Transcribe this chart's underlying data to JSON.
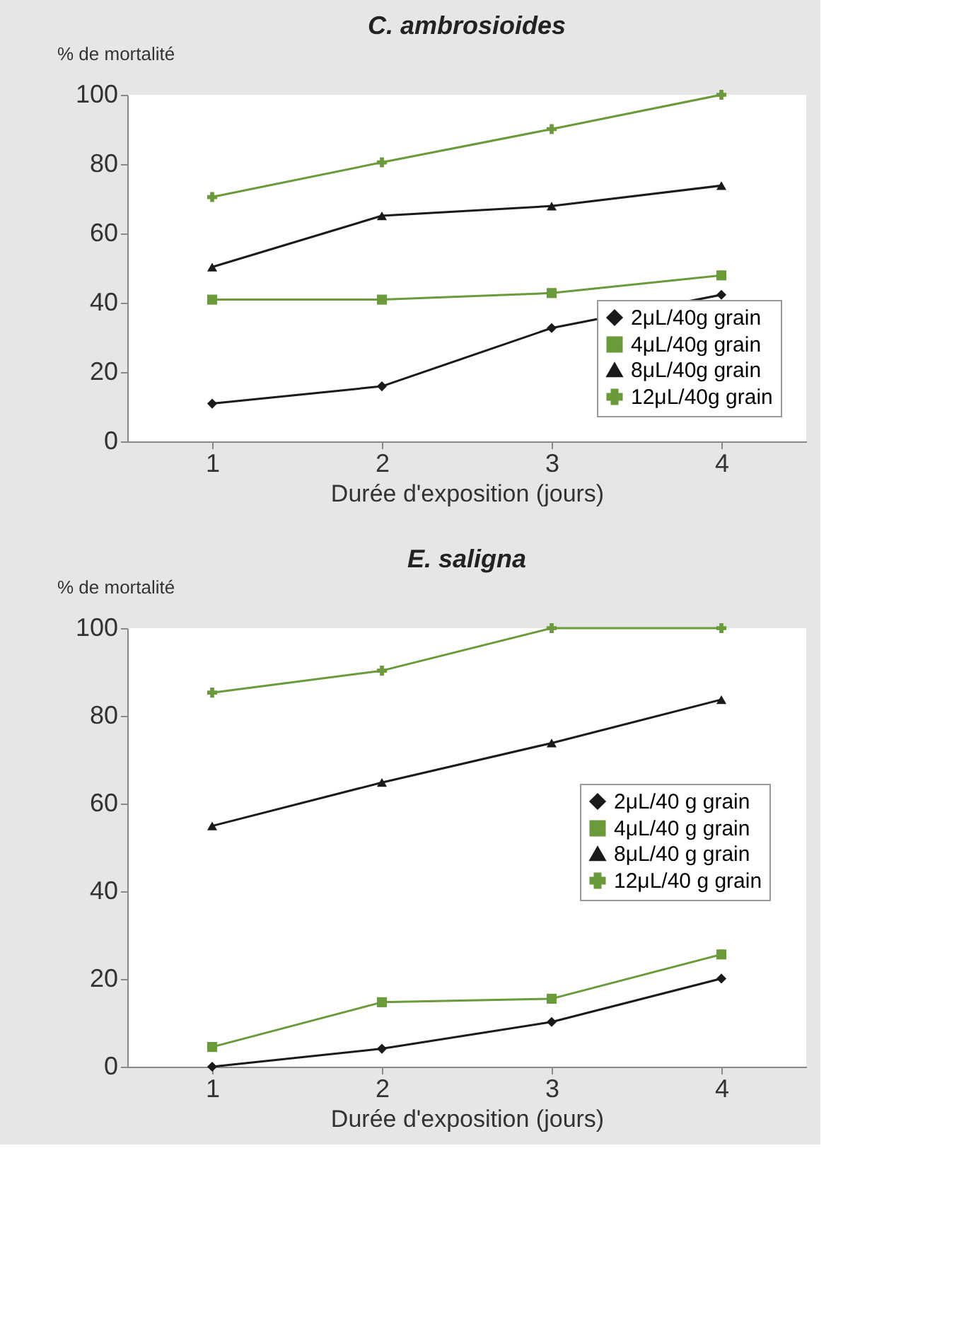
{
  "chart_data": [
    {
      "type": "line",
      "title": "C. ambrosioides",
      "ylabel": "% de mortalité",
      "xlabel": "Durée d'exposition (jours)",
      "categories": [
        "1",
        "2",
        "3",
        "4"
      ],
      "ylim": [
        0,
        100
      ],
      "yticks": [
        0,
        20,
        40,
        60,
        80,
        100
      ],
      "grid": false,
      "legend": "bottom right",
      "series": [
        {
          "name": "2μL/40g grain",
          "color": "#1a1a1a",
          "marker": "diamond",
          "values": [
            10.9,
            15.9,
            32.7,
            42.3
          ]
        },
        {
          "name": "4μL/40g grain",
          "color": "#6a9a3a",
          "marker": "square",
          "values": [
            40.9,
            40.9,
            42.8,
            47.9
          ]
        },
        {
          "name": "8μL/40g grain",
          "color": "#1a1a1a",
          "marker": "triangle",
          "values": [
            50.3,
            65.1,
            67.9,
            73.8
          ]
        },
        {
          "name": "12μL/40g grain",
          "color": "#6a9a3a",
          "marker": "cross",
          "values": [
            70.5,
            80.5,
            90.1,
            100
          ]
        }
      ]
    },
    {
      "type": "line",
      "title": "E. saligna",
      "ylabel": "% de mortalité",
      "xlabel": "Durée d'exposition (jours)",
      "categories": [
        "1",
        "2",
        "3",
        "4"
      ],
      "ylim": [
        0,
        100
      ],
      "yticks": [
        0,
        20,
        40,
        60,
        80,
        100
      ],
      "grid": false,
      "legend": "right",
      "series": [
        {
          "name": "2μL/40 g grain",
          "color": "#1a1a1a",
          "marker": "diamond",
          "values": [
            0,
            4.1,
            10.2,
            20.1
          ]
        },
        {
          "name": "4μL/40 g grain",
          "color": "#6a9a3a",
          "marker": "square",
          "values": [
            4.5,
            14.7,
            15.5,
            25.6
          ]
        },
        {
          "name": "8μL/40 g grain",
          "color": "#1a1a1a",
          "marker": "triangle",
          "values": [
            54.9,
            64.8,
            73.8,
            83.7
          ]
        },
        {
          "name": "12μL/40 g grain",
          "color": "#6a9a3a",
          "marker": "cross",
          "values": [
            85.3,
            90.3,
            100,
            100
          ]
        }
      ]
    }
  ]
}
